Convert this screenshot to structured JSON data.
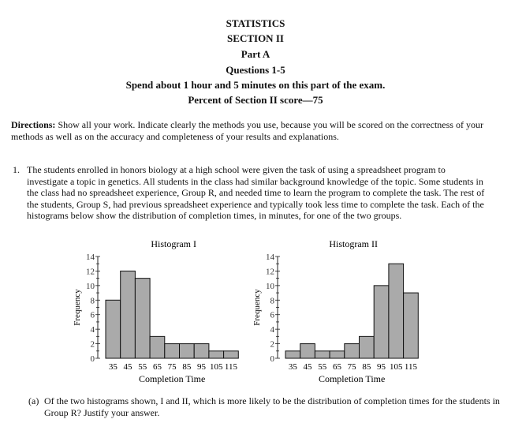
{
  "header": {
    "line1": "STATISTICS",
    "line2": "SECTION II",
    "line3": "Part A",
    "line4": "Questions 1-5",
    "line5": "Spend about 1 hour and 5 minutes on this part of the exam.",
    "line6": "Percent of Section II score—75"
  },
  "directions": {
    "label": "Directions:",
    "text": " Show all your work. Indicate clearly the methods you use, because you will be scored on the correctness of your methods as well as on the accuracy and completeness of your results and explanations."
  },
  "question1": {
    "number": "1.",
    "text": "The students enrolled in honors biology at a high school were given the task of using a spreadsheet program to investigate a topic in genetics. All students in the class had similar background knowledge of the topic. Some students in the class had no spreadsheet experience, Group R, and needed time to learn the program to complete the task. The rest of the students, Group S, had previous spreadsheet experience and typically took less time to complete the task. Each of the histograms below show the distribution of completion times, in minutes, for one of the two groups."
  },
  "part_a": {
    "label": "(a)",
    "text": "Of the two histograms shown, I and II, which is more likely to be the distribution of completion times for the students in Group R? Justify your answer."
  },
  "chart_data": [
    {
      "type": "bar",
      "title": "Histogram I",
      "xlabel": "Completion Time",
      "ylabel": "Frequency",
      "bin_width": 10,
      "bin_start": 30,
      "categories": [
        "35",
        "45",
        "55",
        "65",
        "75",
        "85",
        "95",
        "105",
        "115"
      ],
      "x_tick_labels": [
        "35",
        "45",
        "55",
        "65",
        "75",
        "85",
        "95",
        "105",
        "115"
      ],
      "values": [
        8,
        12,
        11,
        3,
        2,
        2,
        2,
        1,
        1
      ],
      "ylim": [
        0,
        14
      ],
      "y_ticks": [
        "0",
        "2",
        "4",
        "6",
        "8",
        "10",
        "12",
        "14"
      ],
      "bar_color": "#aaaaaa"
    },
    {
      "type": "bar",
      "title": "Histogram II",
      "xlabel": "Completion Time",
      "ylabel": "Frequency",
      "bin_width": 10,
      "bin_start": 30,
      "categories": [
        "35",
        "45",
        "55",
        "65",
        "75",
        "85",
        "95",
        "105",
        "115"
      ],
      "x_tick_labels": [
        "35",
        "45",
        "55",
        "65",
        "75",
        "85",
        "95",
        "105",
        "115"
      ],
      "values": [
        1,
        2,
        1,
        1,
        2,
        3,
        10,
        13,
        9
      ],
      "ylim": [
        0,
        14
      ],
      "y_ticks": [
        "0",
        "2",
        "4",
        "6",
        "8",
        "10",
        "12",
        "14"
      ],
      "bar_color": "#aaaaaa"
    }
  ]
}
